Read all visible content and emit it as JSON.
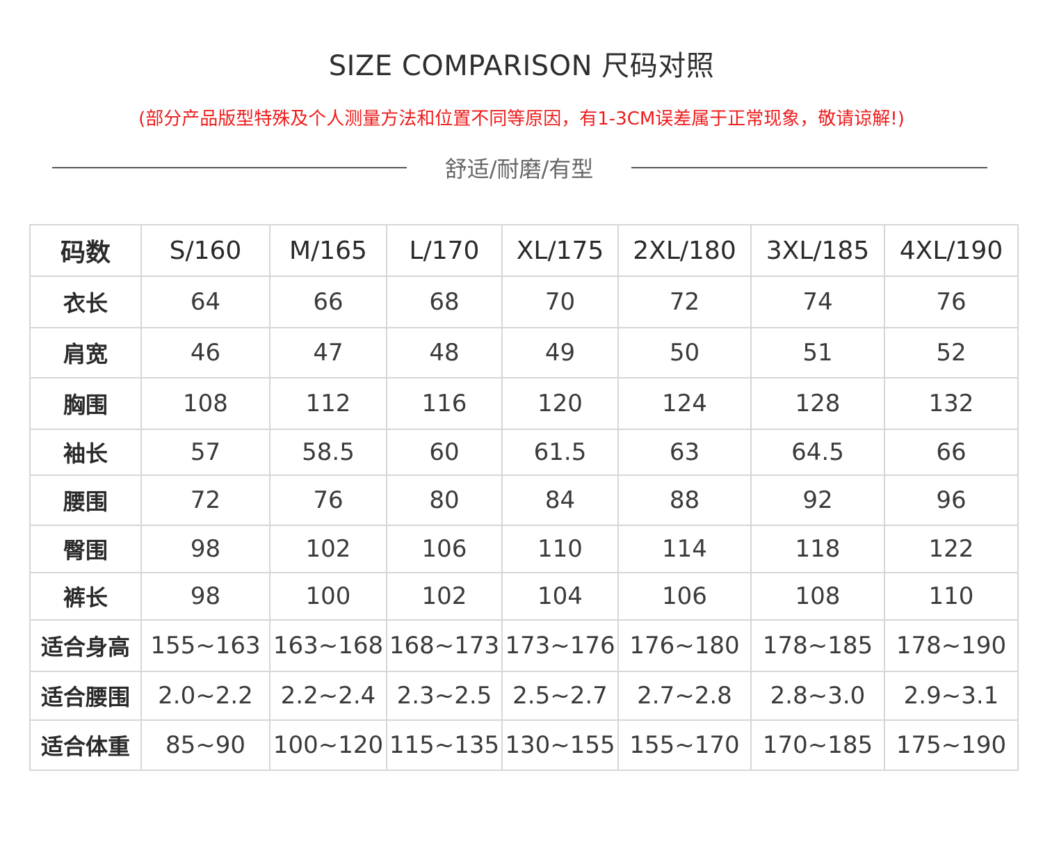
{
  "title": "SIZE COMPARISON 尺码对照",
  "notice": "(部分产品版型特殊及个人测量方法和位置不同等原因，有1-3CM误差属于正常现象，敬请谅解!)",
  "subtitle": "舒适/耐磨/有型",
  "colors": {
    "notice": "#ee1c1c",
    "border": "#d6d6d6",
    "divider": "#555555"
  },
  "table": {
    "header": [
      "码数",
      "S/160",
      "M/165",
      "L/170",
      "XL/175",
      "2XL/180",
      "3XL/185",
      "4XL/190"
    ],
    "rows": [
      {
        "label": "衣长",
        "values": [
          "64",
          "66",
          "68",
          "70",
          "72",
          "74",
          "76"
        ]
      },
      {
        "label": "肩宽",
        "values": [
          "46",
          "47",
          "48",
          "49",
          "50",
          "51",
          "52"
        ]
      },
      {
        "label": "胸围",
        "values": [
          "108",
          "112",
          "116",
          "120",
          "124",
          "128",
          "132"
        ]
      },
      {
        "label": "袖长",
        "values": [
          "57",
          "58.5",
          "60",
          "61.5",
          "63",
          "64.5",
          "66"
        ]
      },
      {
        "label": "腰围",
        "values": [
          "72",
          "76",
          "80",
          "84",
          "88",
          "92",
          "96"
        ]
      },
      {
        "label": "臀围",
        "values": [
          "98",
          "102",
          "106",
          "110",
          "114",
          "118",
          "122"
        ]
      },
      {
        "label": "裤长",
        "values": [
          "98",
          "100",
          "102",
          "104",
          "106",
          "108",
          "110"
        ]
      },
      {
        "label": "适合身高",
        "values": [
          "155~163",
          "163~168",
          "168~173",
          "173~176",
          "176~180",
          "178~185",
          "178~190"
        ]
      },
      {
        "label": "适合腰围",
        "values": [
          "2.0~2.2",
          "2.2~2.4",
          "2.3~2.5",
          "2.5~2.7",
          "2.7~2.8",
          "2.8~3.0",
          "2.9~3.1"
        ]
      },
      {
        "label": "适合体重",
        "values": [
          "85~90",
          "100~120",
          "115~135",
          "130~155",
          "155~170",
          "170~185",
          "175~190"
        ]
      }
    ]
  }
}
